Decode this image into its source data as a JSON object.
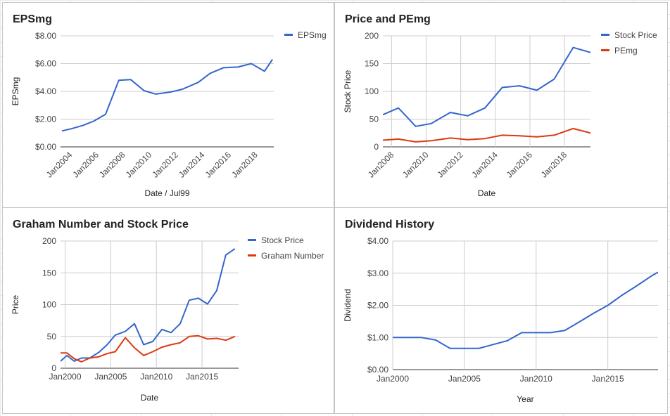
{
  "colors": {
    "blue": "#3366cc",
    "red": "#dc3912",
    "grid": "#cccccc",
    "axis": "#333333",
    "tick_text": "#444444",
    "label_text": "#222222"
  },
  "chart_data": [
    {
      "id": "eps",
      "type": "line",
      "title": "EPSmg",
      "xlabel": "Date / Jul99",
      "ylabel": "EPSmg",
      "x_ticks": [
        "Jan2004",
        "Jan2006",
        "Jan2008",
        "Jan2010",
        "Jan2012",
        "Jan2014",
        "Jan2016",
        "Jan2018"
      ],
      "x_tick_values": [
        2004,
        2006,
        2008,
        2010,
        2012,
        2014,
        2016,
        2018
      ],
      "xlim": [
        2003.3,
        2019.4
      ],
      "y_ticks": [
        "$0.00",
        "$2.00",
        "$4.00",
        "$6.00",
        "$8.00"
      ],
      "y_tick_values": [
        0,
        2,
        4,
        6,
        8
      ],
      "ylim": [
        0,
        8
      ],
      "legend_position": "right",
      "series": [
        {
          "name": "EPSmg",
          "color": "#3366cc",
          "x": [
            2003.4,
            2004.1,
            2005.0,
            2005.8,
            2006.7,
            2007.7,
            2008.6,
            2009.6,
            2010.5,
            2011.6,
            2012.5,
            2013.7,
            2014.6,
            2015.6,
            2016.7,
            2017.7,
            2018.7,
            2019.3
          ],
          "y": [
            1.15,
            1.3,
            1.55,
            1.85,
            2.35,
            4.8,
            4.85,
            4.05,
            3.8,
            3.95,
            4.15,
            4.65,
            5.3,
            5.7,
            5.75,
            6.0,
            5.45,
            6.3
          ]
        }
      ]
    },
    {
      "id": "pe",
      "type": "line",
      "title": "Price and PEmg",
      "xlabel": "Date",
      "ylabel": "Stock Price",
      "x_ticks": [
        "Jan2008",
        "Jan2010",
        "Jan2012",
        "Jan2014",
        "Jan2016",
        "Jan2018"
      ],
      "x_tick_values": [
        2008,
        2010,
        2012,
        2014,
        2016,
        2018
      ],
      "xlim": [
        2007.5,
        2019.5
      ],
      "y_ticks": [
        "0",
        "50",
        "100",
        "150",
        "200"
      ],
      "y_tick_values": [
        0,
        50,
        100,
        150,
        200
      ],
      "ylim": [
        0,
        200
      ],
      "legend_position": "right",
      "series": [
        {
          "name": "Stock Price",
          "color": "#3366cc",
          "x": [
            2007.5,
            2008.4,
            2009.4,
            2010.3,
            2011.4,
            2012.4,
            2013.4,
            2014.4,
            2015.4,
            2016.4,
            2017.4,
            2018.5,
            2019.5
          ],
          "y": [
            58,
            70,
            37,
            42,
            62,
            56,
            70,
            107,
            110,
            102,
            122,
            179,
            170
          ]
        },
        {
          "name": "PEmg",
          "color": "#dc3912",
          "x": [
            2007.5,
            2008.4,
            2009.4,
            2010.3,
            2011.4,
            2012.4,
            2013.4,
            2014.4,
            2015.4,
            2016.4,
            2017.4,
            2018.5,
            2019.5
          ],
          "y": [
            12,
            14,
            9,
            11,
            16,
            13,
            15,
            21,
            20,
            18,
            21,
            33,
            25
          ]
        }
      ]
    },
    {
      "id": "graham",
      "type": "line",
      "title": "Graham Number and Stock Price",
      "xlabel": "Date",
      "ylabel": "Price",
      "x_ticks": [
        "Jan2000",
        "Jan2005",
        "Jan2010",
        "Jan2015"
      ],
      "x_tick_values": [
        2000,
        2005,
        2010,
        2015
      ],
      "xlim": [
        1999.5,
        2019.0
      ],
      "y_ticks": [
        "0",
        "50",
        "100",
        "150",
        "200"
      ],
      "y_tick_values": [
        0,
        50,
        100,
        150,
        200
      ],
      "ylim": [
        0,
        200
      ],
      "legend_position": "right",
      "series": [
        {
          "name": "Stock Price",
          "color": "#3366cc",
          "x": [
            1999.5,
            2000.2,
            2001.0,
            2001.8,
            2002.7,
            2003.7,
            2004.6,
            2005.5,
            2006.6,
            2007.6,
            2008.6,
            2009.6,
            2010.6,
            2011.6,
            2012.6,
            2013.6,
            2014.6,
            2015.6,
            2016.6,
            2017.6,
            2018.6
          ],
          "y": [
            11,
            20,
            11,
            16,
            16,
            25,
            37,
            52,
            58,
            70,
            37,
            42,
            61,
            56,
            70,
            107,
            110,
            101,
            122,
            178,
            188
          ]
        },
        {
          "name": "Graham Number",
          "color": "#dc3912",
          "x": [
            1999.5,
            2000.2,
            2001.0,
            2001.8,
            2002.7,
            2003.7,
            2004.6,
            2005.5,
            2006.6,
            2007.6,
            2008.6,
            2009.6,
            2010.6,
            2011.6,
            2012.6,
            2013.6,
            2014.6,
            2015.6,
            2016.6,
            2017.6,
            2018.6
          ],
          "y": [
            24,
            24,
            15,
            10,
            16,
            18,
            23,
            26,
            48,
            32,
            20,
            26,
            33,
            37,
            40,
            50,
            51,
            46,
            47,
            44,
            50
          ]
        }
      ]
    },
    {
      "id": "div",
      "type": "line",
      "title": "Dividend History",
      "xlabel": "Year",
      "ylabel": "Dividend",
      "x_ticks": [
        "Jan2000",
        "Jan2005",
        "Jan2010",
        "Jan2015"
      ],
      "x_tick_values": [
        2000,
        2005,
        2010,
        2015
      ],
      "xlim": [
        2000,
        2018.5
      ],
      "y_ticks": [
        "$0.00",
        "$1.00",
        "$2.00",
        "$3.00",
        "$4.00"
      ],
      "y_tick_values": [
        0,
        1,
        2,
        3,
        4
      ],
      "ylim": [
        0,
        4
      ],
      "legend_position": "none",
      "series": [
        {
          "name": "",
          "color": "#3366cc",
          "x": [
            2000,
            2001,
            2002,
            2003,
            2004,
            2005,
            2006,
            2007,
            2008,
            2009,
            2010,
            2011,
            2012,
            2013,
            2014,
            2015,
            2016,
            2017,
            2018,
            2018.5
          ],
          "y": [
            1.0,
            1.0,
            1.0,
            0.92,
            0.66,
            0.66,
            0.66,
            0.78,
            0.9,
            1.15,
            1.15,
            1.15,
            1.22,
            1.48,
            1.75,
            2.0,
            2.32,
            2.6,
            2.9,
            3.03
          ]
        }
      ]
    }
  ]
}
